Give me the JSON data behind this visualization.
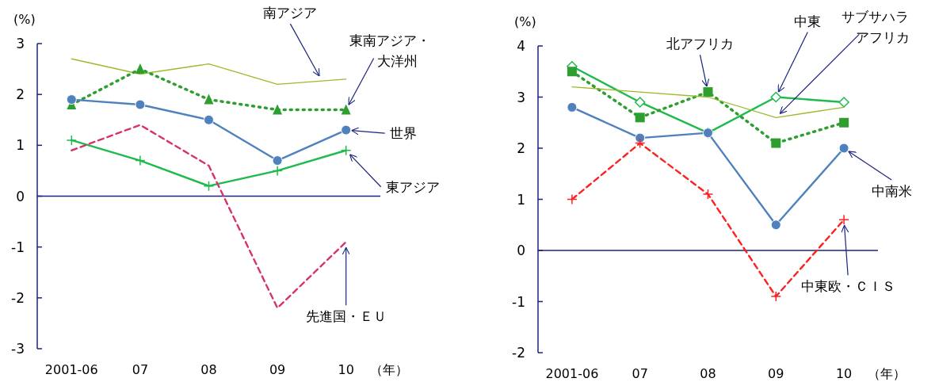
{
  "chart_data": [
    {
      "type": "line",
      "ylabel": "(%)",
      "xlabel": "（年）",
      "categories": [
        "2001-06",
        "07",
        "08",
        "09",
        "10"
      ],
      "ylim": [
        -3,
        3
      ],
      "yticks": [
        -3,
        -2,
        -1,
        0,
        1,
        2,
        3
      ],
      "grid": false,
      "series": [
        {
          "name": "南アジア",
          "color": "#9bbb2a",
          "marker": "none",
          "line_style": "solid",
          "values": [
            2.7,
            2.4,
            2.6,
            2.2,
            2.3
          ]
        },
        {
          "name": "東南アジア・大洋州",
          "color": "#2e9e2e",
          "marker": "triangle",
          "line_style": "dotted",
          "values": [
            1.8,
            2.5,
            1.9,
            1.7,
            1.7
          ]
        },
        {
          "name": "世界",
          "color": "#4f81bd",
          "marker": "circle",
          "line_style": "solid",
          "values": [
            1.9,
            1.8,
            1.5,
            0.7,
            1.3
          ]
        },
        {
          "name": "東アジア",
          "color": "#1fba4e",
          "marker": "cross",
          "line_style": "solid",
          "values": [
            1.1,
            0.7,
            0.2,
            0.5,
            0.9
          ]
        },
        {
          "name": "先進国・ＥＵ",
          "color": "#d6336c",
          "marker": "none",
          "line_style": "dashed",
          "values": [
            0.9,
            1.4,
            0.6,
            -2.2,
            -0.9
          ]
        }
      ],
      "ref_lines": [
        {
          "axis": "y",
          "value": 0,
          "color": "#1a237e"
        }
      ]
    },
    {
      "type": "line",
      "ylabel": "(%)",
      "xlabel": "（年）",
      "categories": [
        "2001-06",
        "07",
        "08",
        "09",
        "10"
      ],
      "ylim": [
        -2,
        4
      ],
      "yticks": [
        -2,
        -1,
        0,
        1,
        2,
        3,
        4
      ],
      "grid": false,
      "series": [
        {
          "name": "中東",
          "color": "#1fba4e",
          "marker": "diamond",
          "line_style": "solid",
          "values": [
            3.6,
            2.9,
            2.3,
            3.0,
            2.9
          ]
        },
        {
          "name": "北アフリカ",
          "color": "#2e9e2e",
          "marker": "square",
          "line_style": "dotted",
          "values": [
            3.5,
            2.6,
            3.1,
            2.1,
            2.5
          ]
        },
        {
          "name": "サブサハラアフリカ",
          "color": "#9bbb2a",
          "marker": "none",
          "line_style": "solid",
          "values": [
            3.2,
            3.1,
            3.0,
            2.6,
            2.8
          ]
        },
        {
          "name": "中南米",
          "color": "#4f81bd",
          "marker": "circle",
          "line_style": "solid",
          "values": [
            2.8,
            2.2,
            2.3,
            0.5,
            2.0
          ]
        },
        {
          "name": "中東欧・ＣＩＳ",
          "color": "#ff2020",
          "marker": "cross",
          "line_style": "dashed",
          "values": [
            1.0,
            2.1,
            1.1,
            -0.9,
            0.6
          ]
        }
      ],
      "ref_lines": [
        {
          "axis": "y",
          "value": 0,
          "color": "#1a237e"
        }
      ]
    }
  ]
}
